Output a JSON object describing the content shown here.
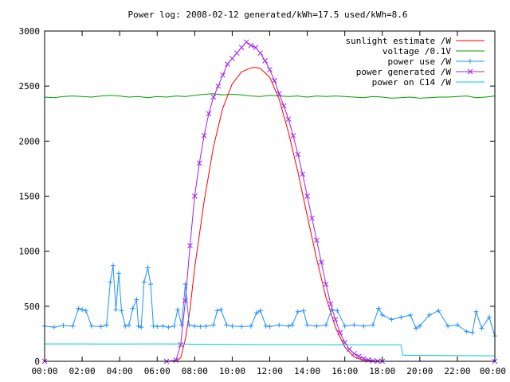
{
  "chart_data": {
    "type": "line",
    "title": "Power log: 2008-02-12 generated/kWh=17.5 used/kWh=8.6",
    "xlabel": "",
    "ylabel": "",
    "xlim": [
      0,
      24
    ],
    "ylim": [
      0,
      3000
    ],
    "grid": false,
    "legend_position": "top-right",
    "x_ticks": [
      {
        "value": 0,
        "label": "00:00"
      },
      {
        "value": 2,
        "label": "02:00"
      },
      {
        "value": 4,
        "label": "04:00"
      },
      {
        "value": 6,
        "label": "06:00"
      },
      {
        "value": 8,
        "label": "08:00"
      },
      {
        "value": 10,
        "label": "10:00"
      },
      {
        "value": 12,
        "label": "12:00"
      },
      {
        "value": 14,
        "label": "14:00"
      },
      {
        "value": 16,
        "label": "16:00"
      },
      {
        "value": 18,
        "label": "18:00"
      },
      {
        "value": 20,
        "label": "20:00"
      },
      {
        "value": 22,
        "label": "22:00"
      },
      {
        "value": 24,
        "label": "00:00"
      }
    ],
    "y_ticks": [
      {
        "value": 0,
        "label": "0"
      },
      {
        "value": 500,
        "label": "500"
      },
      {
        "value": 1000,
        "label": "1000"
      },
      {
        "value": 1500,
        "label": "1500"
      },
      {
        "value": 2000,
        "label": "2000"
      },
      {
        "value": 2500,
        "label": "2500"
      },
      {
        "value": 3000,
        "label": "3000"
      }
    ],
    "series": [
      {
        "name": "sunlight estimate /W",
        "color": "#ff0000",
        "marker": "none",
        "x": [
          0,
          7.0,
          7.25,
          7.5,
          7.75,
          8.0,
          8.5,
          9.0,
          9.5,
          10.0,
          10.5,
          11.0,
          11.25,
          11.5,
          12.0,
          12.5,
          13.0,
          13.5,
          14.0,
          14.5,
          15.0,
          15.5,
          16.0,
          16.5,
          17.0,
          17.5,
          24
        ],
        "y": [
          0,
          0,
          30,
          200,
          470,
          850,
          1450,
          1950,
          2300,
          2520,
          2630,
          2665,
          2670,
          2660,
          2580,
          2380,
          2080,
          1720,
          1320,
          930,
          580,
          310,
          130,
          40,
          10,
          0,
          0
        ]
      },
      {
        "name": "voltage /0.1V",
        "color": "#00a000",
        "marker": "none",
        "x": [
          0,
          0.5,
          1,
          1.5,
          2,
          2.5,
          3,
          3.5,
          4,
          4.5,
          5,
          5.5,
          6,
          6.5,
          7,
          7.5,
          8,
          8.5,
          9,
          9.5,
          10,
          10.5,
          11,
          11.5,
          12,
          12.5,
          13,
          13.5,
          14,
          14.5,
          15,
          15.5,
          16,
          16.5,
          17,
          17.5,
          18,
          18.5,
          19,
          19.5,
          20,
          20.5,
          21,
          21.5,
          22,
          22.5,
          23,
          23.5,
          24
        ],
        "y": [
          2400,
          2395,
          2405,
          2410,
          2405,
          2400,
          2410,
          2415,
          2410,
          2400,
          2405,
          2395,
          2405,
          2400,
          2410,
          2405,
          2415,
          2425,
          2430,
          2420,
          2425,
          2420,
          2410,
          2405,
          2415,
          2410,
          2405,
          2410,
          2400,
          2410,
          2405,
          2410,
          2405,
          2400,
          2395,
          2405,
          2400,
          2390,
          2395,
          2400,
          2390,
          2395,
          2400,
          2400,
          2405,
          2410,
          2395,
          2400,
          2410
        ]
      },
      {
        "name": "power use /W",
        "color": "#1e90ff",
        "marker": "plus",
        "x": [
          0,
          0.5,
          1,
          1.5,
          1.8,
          2.0,
          2.2,
          2.5,
          3,
          3.3,
          3.5,
          3.65,
          3.8,
          3.95,
          4.1,
          4.3,
          4.5,
          4.7,
          4.9,
          5.0,
          5.15,
          5.3,
          5.5,
          5.65,
          5.8,
          6.0,
          6.3,
          6.6,
          6.9,
          7.1,
          7.3,
          7.5,
          7.7,
          8.0,
          8.3,
          8.6,
          9.0,
          9.2,
          9.4,
          9.7,
          10,
          10.5,
          11,
          11.3,
          11.5,
          11.8,
          12,
          12.5,
          13,
          13.2,
          13.5,
          13.8,
          14,
          14.5,
          15,
          15.3,
          15.6,
          16,
          16.5,
          17,
          17.5,
          17.8,
          18.0,
          18.5,
          19,
          19.5,
          19.8,
          20,
          20.5,
          21,
          21.5,
          22,
          22.5,
          22.8,
          23.0,
          23.3,
          23.7,
          24
        ],
        "y": [
          320,
          310,
          325,
          320,
          480,
          470,
          460,
          320,
          315,
          330,
          720,
          870,
          470,
          800,
          460,
          320,
          330,
          480,
          560,
          320,
          310,
          720,
          850,
          700,
          320,
          315,
          320,
          310,
          320,
          470,
          330,
          700,
          330,
          320,
          315,
          320,
          330,
          460,
          470,
          330,
          320,
          315,
          320,
          440,
          460,
          320,
          315,
          330,
          320,
          330,
          450,
          460,
          330,
          320,
          330,
          470,
          460,
          320,
          330,
          320,
          330,
          480,
          420,
          380,
          400,
          420,
          300,
          320,
          420,
          460,
          320,
          330,
          270,
          260,
          450,
          300,
          400,
          230
        ]
      },
      {
        "name": "power generated /W",
        "color": "#a020f0",
        "marker": "cross",
        "x": [
          0,
          6.5,
          7.0,
          7.25,
          7.5,
          7.75,
          8.0,
          8.25,
          8.5,
          8.75,
          9.0,
          9.25,
          9.5,
          9.75,
          10.0,
          10.25,
          10.5,
          10.75,
          11.0,
          11.25,
          11.5,
          11.75,
          12.0,
          12.25,
          12.5,
          12.75,
          13.0,
          13.25,
          13.5,
          13.75,
          14.0,
          14.25,
          14.5,
          14.75,
          15.0,
          15.25,
          15.5,
          15.75,
          16.0,
          16.25,
          16.5,
          16.75,
          17.0,
          17.25,
          17.5,
          17.75,
          18.0,
          24
        ],
        "y": [
          0,
          0,
          10,
          150,
          550,
          1050,
          1500,
          1800,
          2050,
          2250,
          2400,
          2500,
          2600,
          2700,
          2750,
          2800,
          2850,
          2900,
          2870,
          2850,
          2800,
          2730,
          2650,
          2550,
          2430,
          2320,
          2200,
          2050,
          1880,
          1700,
          1500,
          1300,
          1100,
          900,
          700,
          520,
          380,
          260,
          170,
          110,
          70,
          45,
          25,
          12,
          5,
          2,
          0,
          0
        ]
      },
      {
        "name": "power on C14 /W",
        "color": "#00cccc",
        "marker": "none",
        "x": [
          0,
          2,
          4,
          6,
          7.5,
          8,
          10,
          12,
          14,
          16,
          18,
          19.0,
          19.1,
          21,
          24
        ],
        "y": [
          158,
          158,
          157,
          158,
          157,
          155,
          153,
          152,
          152,
          150,
          150,
          150,
          55,
          52,
          50
        ]
      }
    ]
  }
}
